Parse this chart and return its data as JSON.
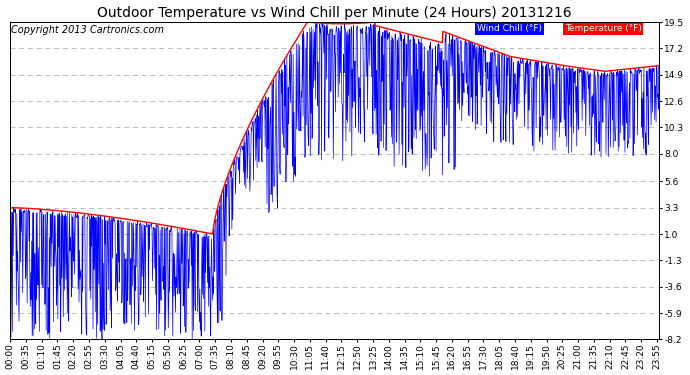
{
  "title": "Outdoor Temperature vs Wind Chill per Minute (24 Hours) 20131216",
  "copyright": "Copyright 2013 Cartronics.com",
  "legend_wind_chill": "Wind Chill (°F)",
  "legend_temperature": "Temperature (°F)",
  "ylabel_right_ticks": [
    19.5,
    17.2,
    14.9,
    12.6,
    10.3,
    8.0,
    5.6,
    3.3,
    1.0,
    -1.3,
    -3.6,
    -5.9,
    -8.2
  ],
  "ylim": [
    -8.2,
    19.5
  ],
  "background_color": "#ffffff",
  "grid_color": "#bbbbbb",
  "wind_chill_color": "#0000ff",
  "temperature_color": "#ff0000",
  "legend_wind_bg": "#0000ff",
  "legend_temp_bg": "#ff0000",
  "title_fontsize": 10,
  "copyright_fontsize": 7,
  "tick_fontsize": 6.5,
  "num_minutes": 1440,
  "x_tick_interval": 35
}
